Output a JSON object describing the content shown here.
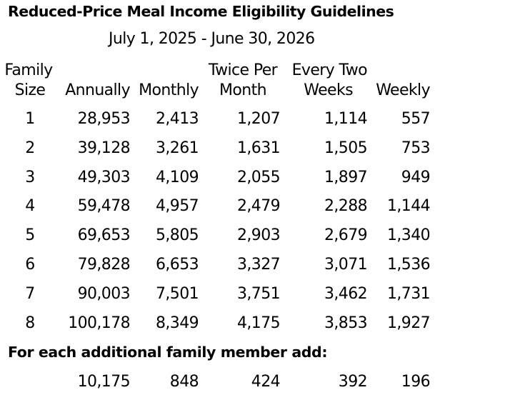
{
  "title": "Reduced-Price Meal Income Eligibility Guidelines",
  "date_range": "July 1, 2025 - June 30, 2026",
  "headers": {
    "family_size_line1": "Family",
    "family_size_line2": "Size",
    "annually": "Annually",
    "monthly": "Monthly",
    "twice_per_month_line1": "Twice Per",
    "twice_per_month_line2": "Month",
    "every_two_weeks_line1": "Every Two",
    "every_two_weeks_line2": "Weeks",
    "weekly": "Weekly"
  },
  "rows": [
    {
      "size": "1",
      "annually": "28,953",
      "monthly": "2,413",
      "twice_per_month": "1,207",
      "every_two_weeks": "1,114",
      "weekly": "557"
    },
    {
      "size": "2",
      "annually": "39,128",
      "monthly": "3,261",
      "twice_per_month": "1,631",
      "every_two_weeks": "1,505",
      "weekly": "753"
    },
    {
      "size": "3",
      "annually": "49,303",
      "monthly": "4,109",
      "twice_per_month": "2,055",
      "every_two_weeks": "1,897",
      "weekly": "949"
    },
    {
      "size": "4",
      "annually": "59,478",
      "monthly": "4,957",
      "twice_per_month": "2,479",
      "every_two_weeks": "2,288",
      "weekly": "1,144"
    },
    {
      "size": "5",
      "annually": "69,653",
      "monthly": "5,805",
      "twice_per_month": "2,903",
      "every_two_weeks": "2,679",
      "weekly": "1,340"
    },
    {
      "size": "6",
      "annually": "79,828",
      "monthly": "6,653",
      "twice_per_month": "3,327",
      "every_two_weeks": "3,071",
      "weekly": "1,536"
    },
    {
      "size": "7",
      "annually": "90,003",
      "monthly": "7,501",
      "twice_per_month": "3,751",
      "every_two_weeks": "3,462",
      "weekly": "1,731"
    },
    {
      "size": "8",
      "annually": "100,178",
      "monthly": "8,349",
      "twice_per_month": "4,175",
      "every_two_weeks": "3,853",
      "weekly": "1,927"
    }
  ],
  "additional_member": {
    "label": "For each additional family member add:",
    "annually": "10,175",
    "monthly": "848",
    "twice_per_month": "424",
    "every_two_weeks": "392",
    "weekly": "196"
  }
}
